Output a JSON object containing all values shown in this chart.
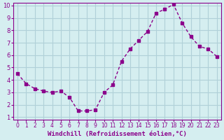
{
  "x": [
    0,
    1,
    2,
    3,
    4,
    5,
    6,
    7,
    8,
    9,
    10,
    11,
    12,
    13,
    14,
    15,
    16,
    17,
    18,
    19,
    20,
    21,
    22,
    23
  ],
  "y": [
    4.5,
    3.7,
    3.3,
    3.1,
    3.0,
    3.1,
    2.6,
    1.5,
    1.5,
    1.6,
    3.0,
    3.6,
    5.5,
    6.5,
    7.2,
    7.9,
    9.4,
    9.7,
    10.1,
    8.6,
    7.5,
    6.7,
    6.5,
    5.9
  ],
  "line_color": "#8B008B",
  "marker_color": "#8B008B",
  "bg_color": "#d5eef0",
  "grid_color": "#b0d0d8",
  "xlabel": "Windchill (Refroidissement éolien,°C)",
  "ylabel": "",
  "title": "",
  "xlim": [
    0,
    23
  ],
  "ylim": [
    1,
    10
  ],
  "yticks": [
    1,
    2,
    3,
    4,
    5,
    6,
    7,
    8,
    9,
    10
  ],
  "xticks": [
    0,
    1,
    2,
    3,
    4,
    5,
    6,
    7,
    8,
    9,
    10,
    11,
    12,
    13,
    14,
    15,
    16,
    17,
    18,
    19,
    20,
    21,
    22,
    23
  ]
}
